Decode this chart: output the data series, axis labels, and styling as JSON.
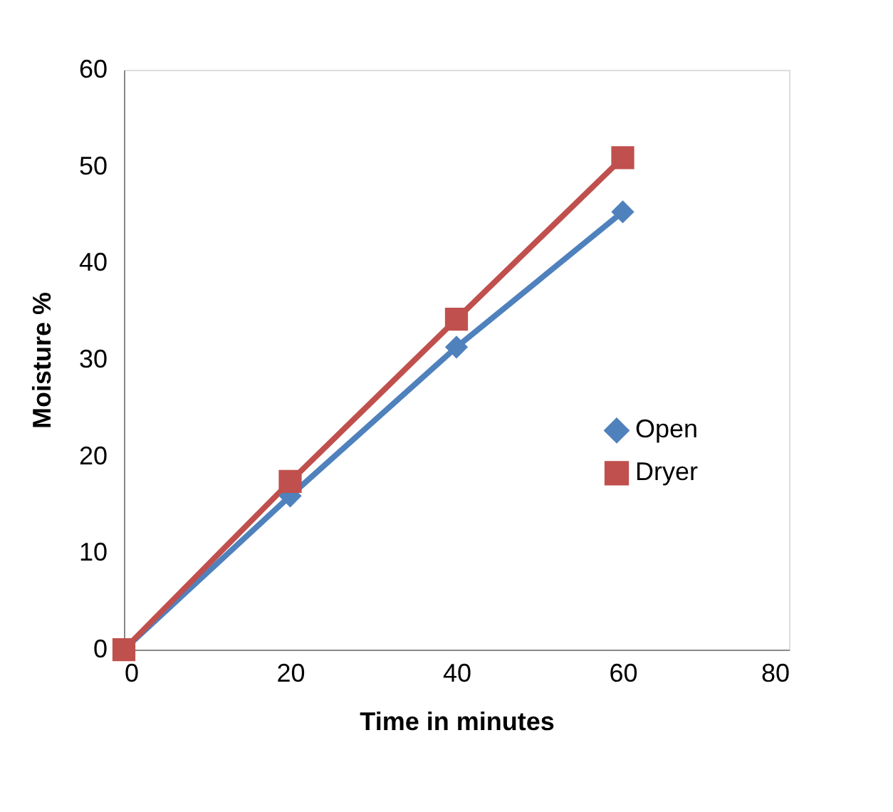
{
  "chart_data": {
    "type": "line",
    "xlabel": "Time in minutes",
    "ylabel": "Moisture %",
    "x": [
      0,
      20,
      40,
      60
    ],
    "series": [
      {
        "name": "Open",
        "color": "#4f81bd",
        "marker": "diamond",
        "values": [
          0,
          15.9,
          31.3,
          45.3
        ]
      },
      {
        "name": "Dryer",
        "color": "#c0504d",
        "marker": "square",
        "values": [
          0,
          17.4,
          34.2,
          50.9
        ]
      }
    ],
    "xlim": [
      0,
      80
    ],
    "xticks": [
      0,
      20,
      40,
      60,
      80
    ],
    "ylim": [
      0,
      60
    ],
    "yticks": [
      0,
      10,
      20,
      30,
      40,
      50,
      60
    ],
    "grid": false,
    "legend": "right",
    "line_style": "solid"
  }
}
